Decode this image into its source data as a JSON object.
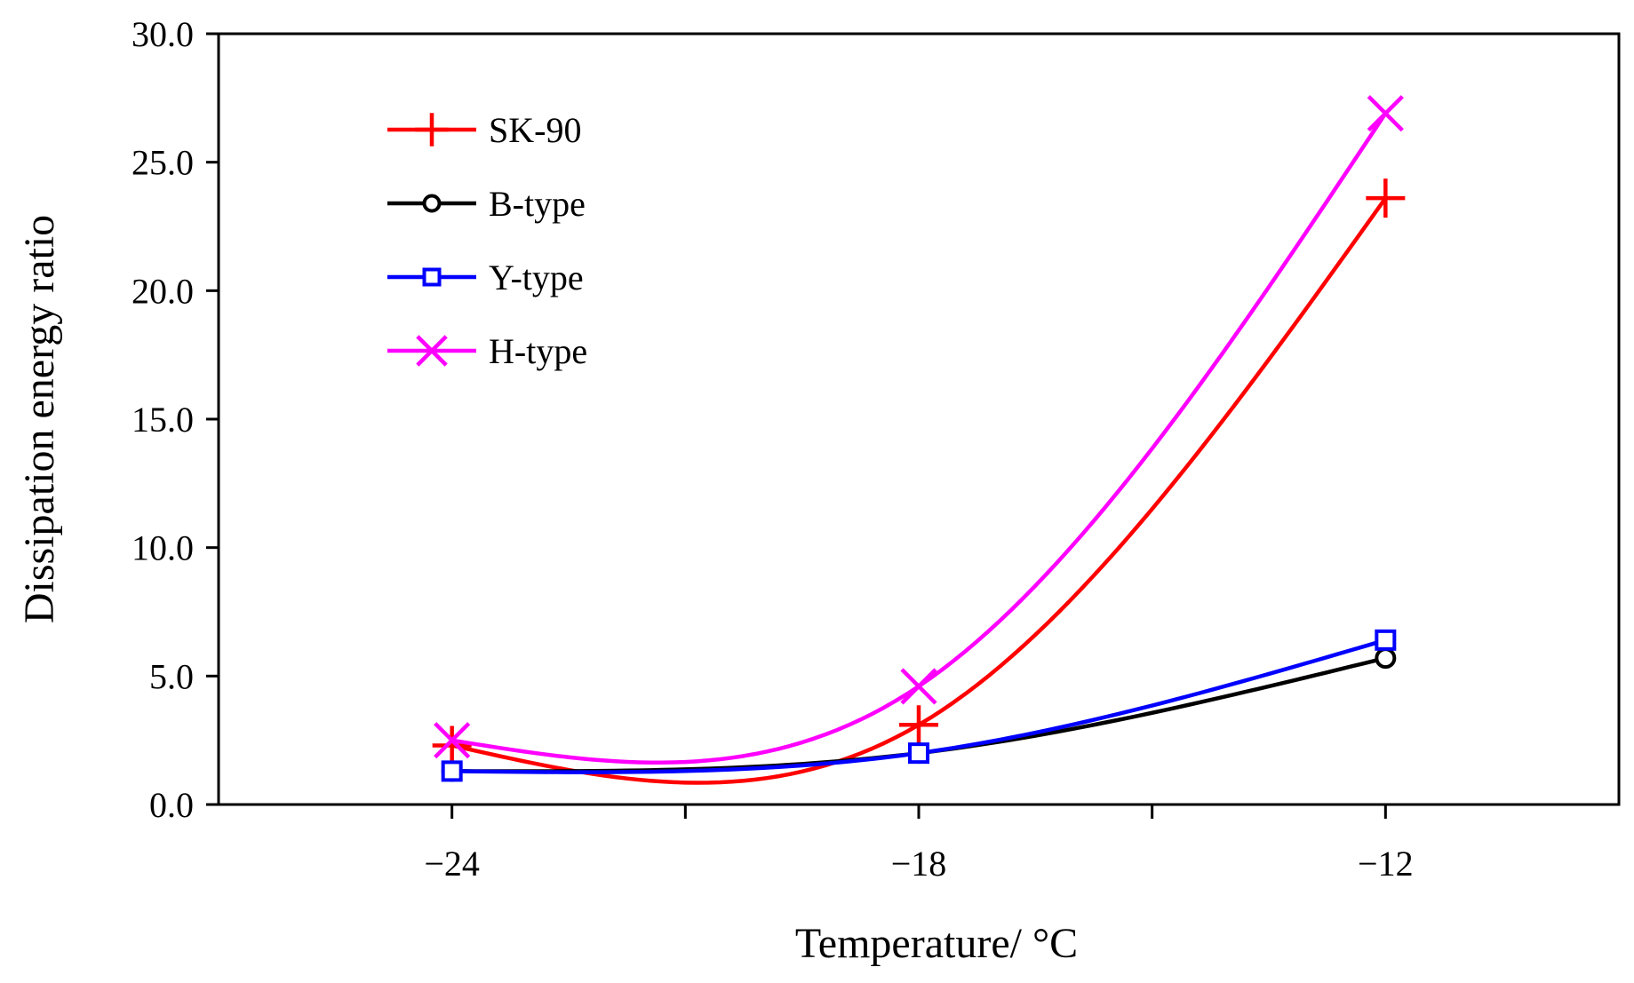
{
  "chart_data": {
    "type": "line",
    "title": "",
    "xlabel": "Temperature/ °C",
    "ylabel": "Dissipation energy ratio",
    "x": [
      -24,
      -18,
      -12
    ],
    "xlim": [
      -27,
      -9
    ],
    "x_minor_ticks": [
      -21,
      -15
    ],
    "ylim": [
      0,
      30
    ],
    "x_tick_labels": [
      "−24",
      "−18",
      "−12"
    ],
    "y_tick_labels": [
      "0.0",
      "5.0",
      "10.0",
      "15.0",
      "20.0",
      "25.0",
      "30.0"
    ],
    "y_ticks": [
      0,
      5,
      10,
      15,
      20,
      25,
      30
    ],
    "grid": false,
    "legend_position": "top-left",
    "smooth": true,
    "series": [
      {
        "name": "SK-90",
        "color": "#ff0000",
        "marker": "plus",
        "values": [
          2.3,
          3.1,
          23.6
        ]
      },
      {
        "name": "B-type",
        "color": "#000000",
        "marker": "circle",
        "values": [
          1.3,
          2.0,
          5.7
        ]
      },
      {
        "name": "Y-type",
        "color": "#0000ff",
        "marker": "square",
        "values": [
          1.3,
          2.0,
          6.4
        ]
      },
      {
        "name": "H-type",
        "color": "#ff00ff",
        "marker": "cross",
        "values": [
          2.5,
          4.6,
          26.9
        ]
      }
    ]
  }
}
